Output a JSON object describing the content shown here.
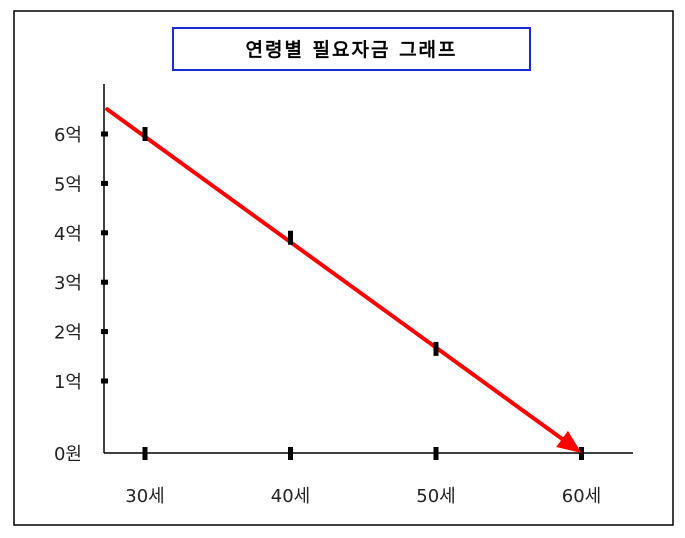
{
  "chart_data": {
    "type": "line",
    "title": "연령별 필요자금 그래프",
    "xlabel": "",
    "ylabel": "",
    "x_categories": [
      "30세",
      "40세",
      "50세",
      "60세"
    ],
    "x_values": [
      30,
      40,
      50,
      60
    ],
    "y_ticks": [
      {
        "value": 0,
        "label": "0원"
      },
      {
        "value": 1,
        "label": "1억"
      },
      {
        "value": 2,
        "label": "2억"
      },
      {
        "value": 3,
        "label": "3억"
      },
      {
        "value": 4,
        "label": "4억"
      },
      {
        "value": 5,
        "label": "5억"
      },
      {
        "value": 6,
        "label": "6억"
      }
    ],
    "series": [
      {
        "points": [
          {
            "x": 30,
            "y": 6.0
          },
          {
            "x": 40,
            "y": 3.9
          },
          {
            "x": 50,
            "y": 1.65
          },
          {
            "x": 60,
            "y": 0
          }
        ]
      }
    ],
    "line_start": {
      "x": 27.4,
      "y": 6.5
    },
    "arrow_end": true,
    "grid": false,
    "colors": {
      "line": "#ff0000",
      "axis": "#000000",
      "title_border": "#1a2bd1"
    }
  }
}
